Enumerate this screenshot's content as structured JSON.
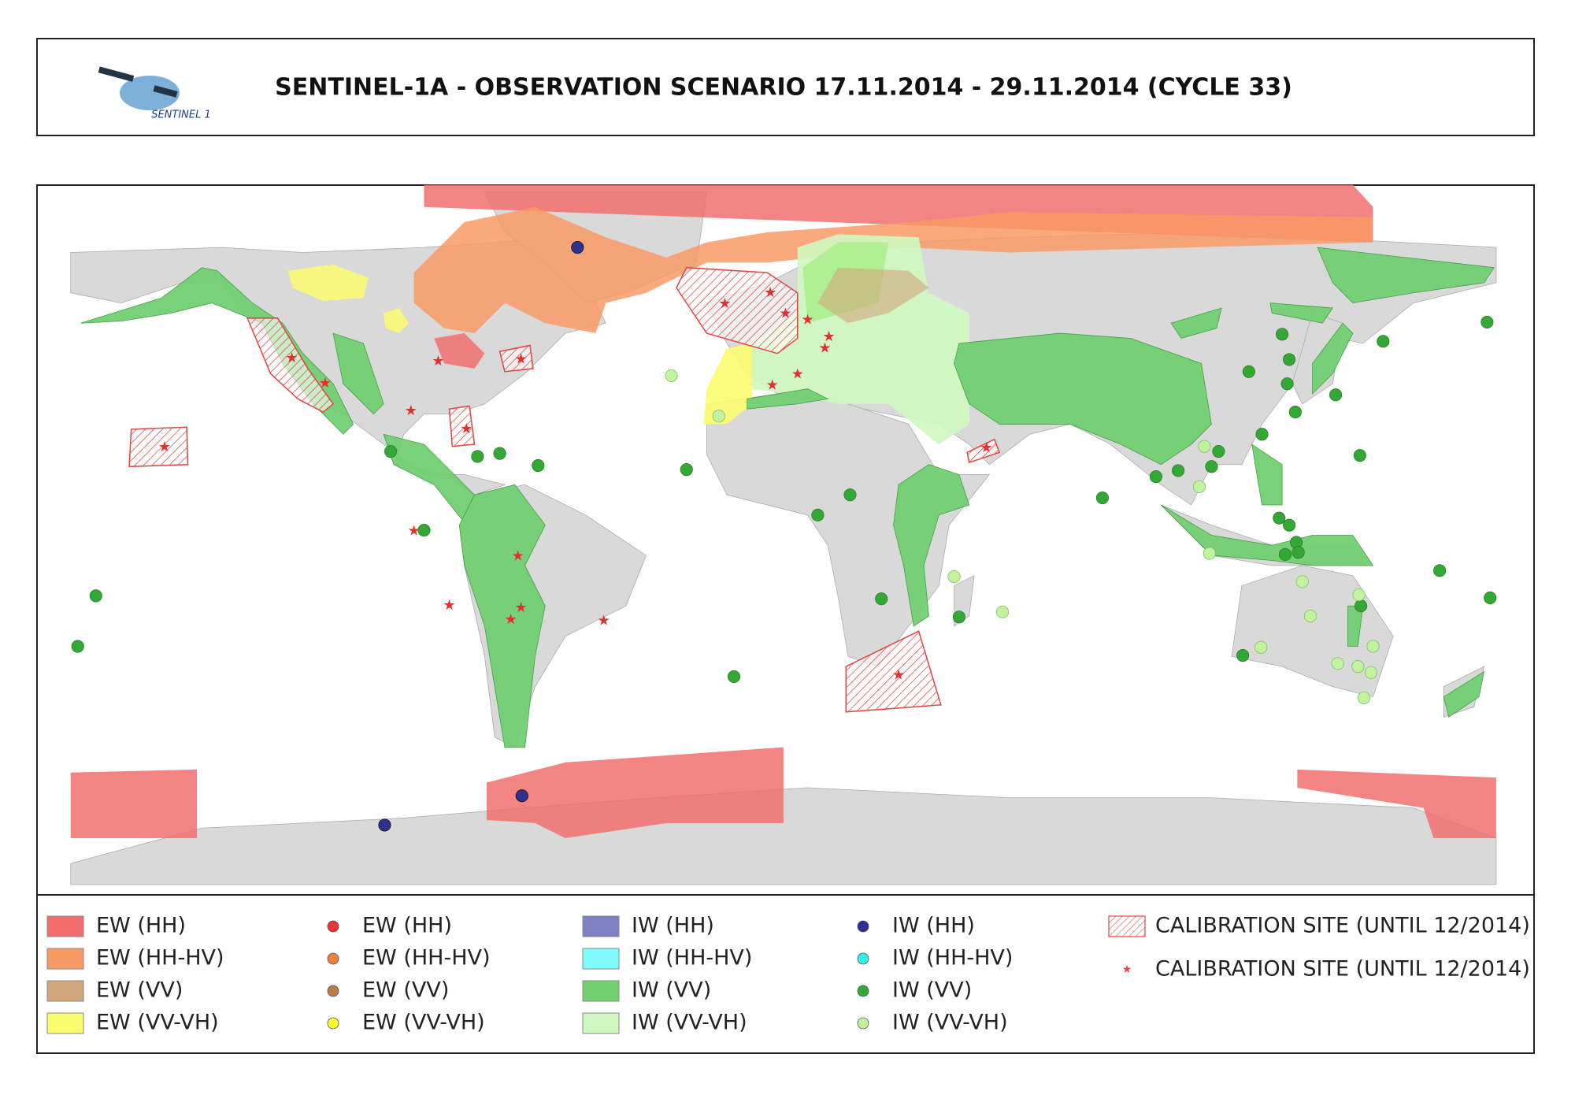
{
  "header": {
    "title": "SENTINEL-1A - OBSERVATION SCENARIO 17.11.2014 - 29.11.2014 (CYCLE 33)",
    "logo_text": "SENTINEL 1"
  },
  "legend": {
    "columns": [
      {
        "symbol": "area",
        "items": [
          {
            "label": "EW (HH)",
            "color": "#f26d6d"
          },
          {
            "label": "EW (HH-HV)",
            "color": "#f89a66"
          },
          {
            "label": "EW (VV)",
            "color": "#d2a67c"
          },
          {
            "label": "EW (VV-VH)",
            "color": "#fbfb6e"
          }
        ]
      },
      {
        "symbol": "dot",
        "items": [
          {
            "label": "EW (HH)",
            "color": "#ee3333"
          },
          {
            "label": "EW (HH-HV)",
            "color": "#f0803e"
          },
          {
            "label": "EW (VV)",
            "color": "#bb7d44"
          },
          {
            "label": "EW (VV-VH)",
            "color": "#fbfb33"
          }
        ]
      },
      {
        "symbol": "area",
        "items": [
          {
            "label": "IW (HH)",
            "color": "#7f7fc4"
          },
          {
            "label": "IW (HH-HV)",
            "color": "#80fbfb"
          },
          {
            "label": "IW (VV)",
            "color": "#72cf72"
          },
          {
            "label": "IW (VV-VH)",
            "color": "#cff8c0"
          }
        ]
      },
      {
        "symbol": "dot",
        "items": [
          {
            "label": "IW (HH)",
            "color": "#303090"
          },
          {
            "label": "IW (HH-HV)",
            "color": "#33eeee"
          },
          {
            "label": "IW (VV)",
            "color": "#34a834"
          },
          {
            "label": "IW (VV-VH)",
            "color": "#c2f29e"
          }
        ]
      },
      {
        "symbol": "calibration",
        "items": [
          {
            "label": "CALIBRATION SITE (UNTIL 12/2014)",
            "color": "#e04848"
          },
          {
            "label": "CALIBRATION SITE (UNTIL 12/2014)",
            "color": "#e04848"
          }
        ]
      }
    ]
  }
}
